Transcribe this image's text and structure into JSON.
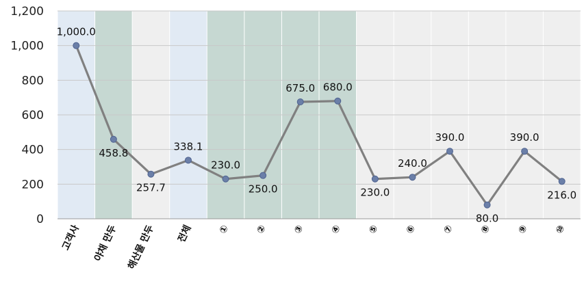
{
  "chart_data": {
    "type": "line",
    "title": "",
    "xlabel": "",
    "ylabel": "",
    "ylim": [
      0,
      1200
    ],
    "yticks": [
      0,
      200,
      400,
      600,
      800,
      1000,
      1200
    ],
    "ytick_labels": [
      "0",
      "200",
      "400",
      "600",
      "800",
      "1,000",
      "1,200"
    ],
    "categories": [
      "고객사",
      "야채 만두",
      "해산물 만두",
      "전체",
      "①",
      "②",
      "③",
      "④",
      "⑤",
      "⑥",
      "⑦",
      "⑧",
      "⑨",
      "⑩"
    ],
    "series": [
      {
        "values": [
          1000.0,
          458.8,
          257.7,
          338.1,
          230.0,
          250.0,
          675.0,
          680.0,
          230.0,
          240.0,
          390.0,
          80.0,
          390.0,
          216.0
        ],
        "labels": [
          "1,000.0",
          "458.8",
          "257.7",
          "338.1",
          "230.0",
          "250.0",
          "675.0",
          "680.0",
          "230.0",
          "240.0",
          "390.0",
          "80.0",
          "390.0",
          "216.0"
        ]
      }
    ],
    "background_bands": [
      "#e1eaf4",
      "#c6d8d2",
      "#efefef",
      "#e1eaf4",
      "#c6d8d2",
      "#c6d8d2",
      "#c6d8d2",
      "#c6d8d2",
      "#efefef",
      "#efefef",
      "#efefef",
      "#efefef",
      "#efefef",
      "#efefef"
    ],
    "line_color": "#808080",
    "marker_color": "#6b7fa8",
    "grid": true,
    "legend": "none"
  }
}
